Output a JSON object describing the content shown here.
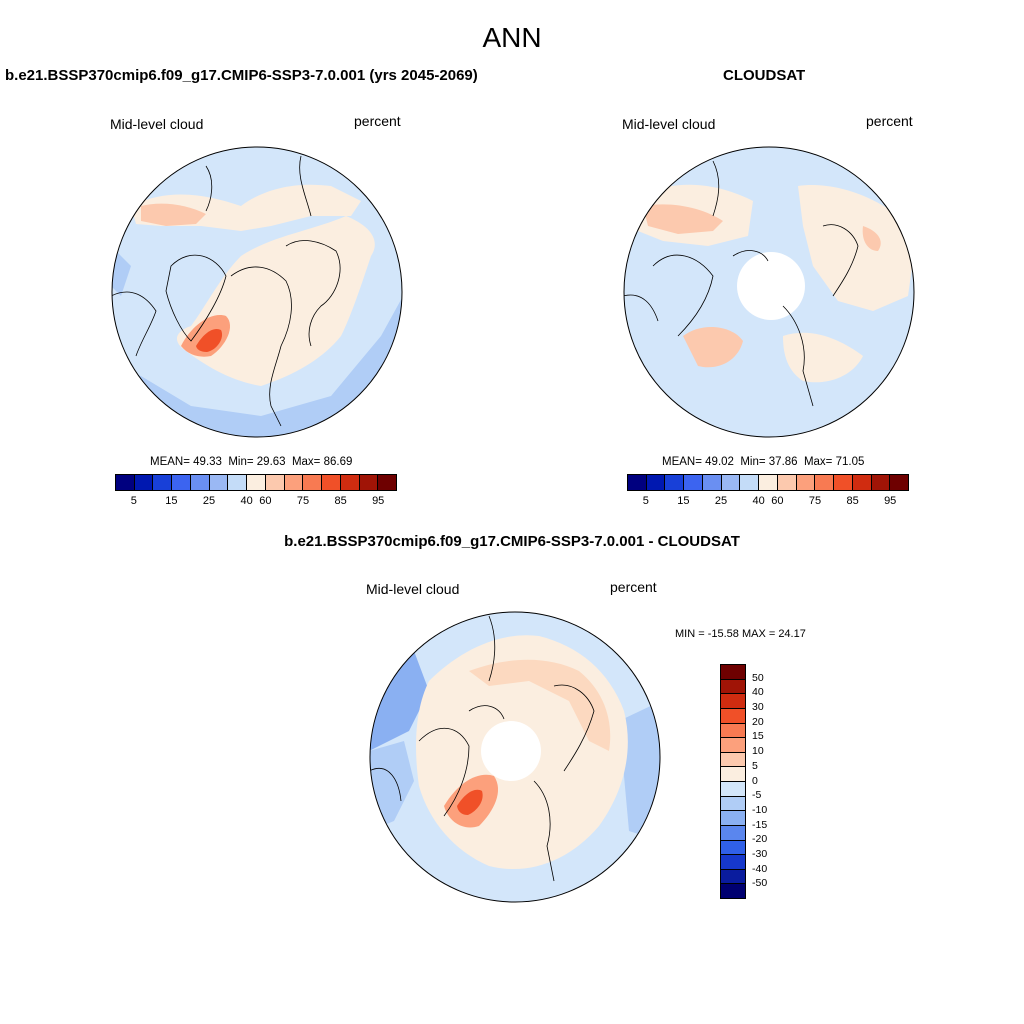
{
  "figure": {
    "season": "ANN"
  },
  "panels": [
    {
      "title": "b.e21.BSSP370cmip6.f09_g17.CMIP6-SSP3-7.0.001 (yrs 2045-2069)",
      "variable": "Mid-level cloud",
      "units": "percent",
      "stats": {
        "mean_label": "MEAN=",
        "mean": "49.33",
        "min_label": "Min=",
        "min": "29.63",
        "max_label": "Max=",
        "max": "86.69"
      },
      "has_polar_gap": false
    },
    {
      "title": "CLOUDSAT",
      "variable": "Mid-level cloud",
      "units": "percent",
      "stats": {
        "mean_label": "MEAN=",
        "mean": "49.02",
        "min_label": "Min=",
        "min": "37.86",
        "max_label": "Max=",
        "max": "71.05"
      },
      "has_polar_gap": true
    }
  ],
  "diff_panel": {
    "title": "b.e21.BSSP370cmip6.f09_g17.CMIP6-SSP3-7.0.001 - CLOUDSAT",
    "variable": "Mid-level cloud",
    "units": "percent",
    "minmax_text": "MIN = -15.58 MAX =  24.17",
    "has_polar_gap": true
  },
  "colorbar_field": {
    "colors": [
      "#00007f",
      "#0018b0",
      "#1840d8",
      "#3c64f0",
      "#6a8ff2",
      "#9ab8f4",
      "#c4dcf8",
      "#fbeee0",
      "#fcc9ae",
      "#fca07c",
      "#f87a52",
      "#f05028",
      "#d02c10",
      "#a01406",
      "#6e0000"
    ],
    "tick_labels": [
      "5",
      "15",
      "25",
      "40",
      "60",
      "75",
      "85",
      "95"
    ]
  },
  "colorbar_diff": {
    "colors": [
      "#6e0000",
      "#a01406",
      "#d02c10",
      "#f05028",
      "#f87a52",
      "#fca07c",
      "#fcc9ae",
      "#fbeee0",
      "#d3e6fa",
      "#b0cdf6",
      "#8ab0f2",
      "#5a86ee",
      "#3060e8",
      "#1638cc",
      "#0a1c9e",
      "#000070"
    ],
    "tick_labels": [
      "50",
      "40",
      "30",
      "20",
      "15",
      "10",
      "5",
      "0",
      "-5",
      "-10",
      "-15",
      "-20",
      "-30",
      "-40",
      "-50"
    ]
  },
  "map_colors": {
    "land_outline": "#000000",
    "neutral_warm": "#fbeee0",
    "light_warm": "#fcd9c0",
    "warm": "#fca07c",
    "strong_warm": "#f05028",
    "light_cool": "#d3e6fa",
    "cool": "#b0cdf6",
    "mid_cool": "#8ab0f2"
  }
}
